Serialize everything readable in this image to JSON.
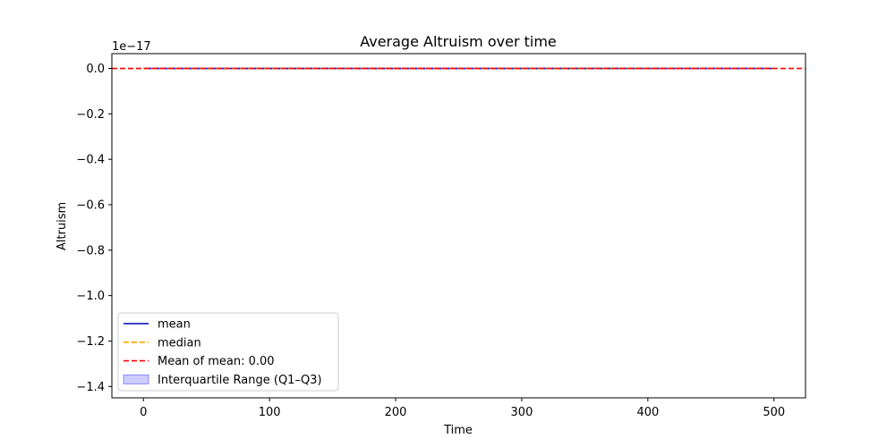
{
  "chart_data": {
    "type": "line",
    "title": "Average Altruism over time",
    "xlabel": "Time",
    "ylabel": "Altruism",
    "offset_text": "1e−17",
    "xlim": [
      -25,
      525
    ],
    "ylim": [
      -1.45,
      0.065
    ],
    "x_ticks": [
      0,
      100,
      200,
      300,
      400,
      500
    ],
    "x_tick_labels": [
      "0",
      "100",
      "200",
      "300",
      "400",
      "500"
    ],
    "y_ticks": [
      0.0,
      -0.2,
      -0.4,
      -0.6,
      -0.8,
      -1.0,
      -1.2,
      -1.4
    ],
    "y_tick_labels": [
      "0.0",
      "−0.2",
      "−0.4",
      "−0.6",
      "−0.8",
      "−1.0",
      "−1.2",
      "−1.4"
    ],
    "grid": false,
    "legend_position": "lower-left",
    "series": [
      {
        "name": "mean",
        "style": "solid",
        "color": "#0000cc",
        "x": [
          0,
          500
        ],
        "y": [
          0.0,
          0.0
        ]
      },
      {
        "name": "median",
        "style": "dashed",
        "color": "#ffa500",
        "x": [
          0,
          500
        ],
        "y": [
          0.0,
          0.0
        ]
      },
      {
        "name": "Mean of mean: 0.00",
        "style": "dashed",
        "color": "#ff0000",
        "x": [
          -25,
          525
        ],
        "y": [
          0.0,
          0.0
        ]
      }
    ],
    "bands": [
      {
        "name": "Interquartile Range (Q1–Q3)",
        "color": "#0000ff",
        "opacity": 0.2,
        "x": [
          0,
          500
        ],
        "y_low": [
          0.0,
          0.0
        ],
        "y_high": [
          0.0,
          0.0
        ]
      }
    ]
  }
}
